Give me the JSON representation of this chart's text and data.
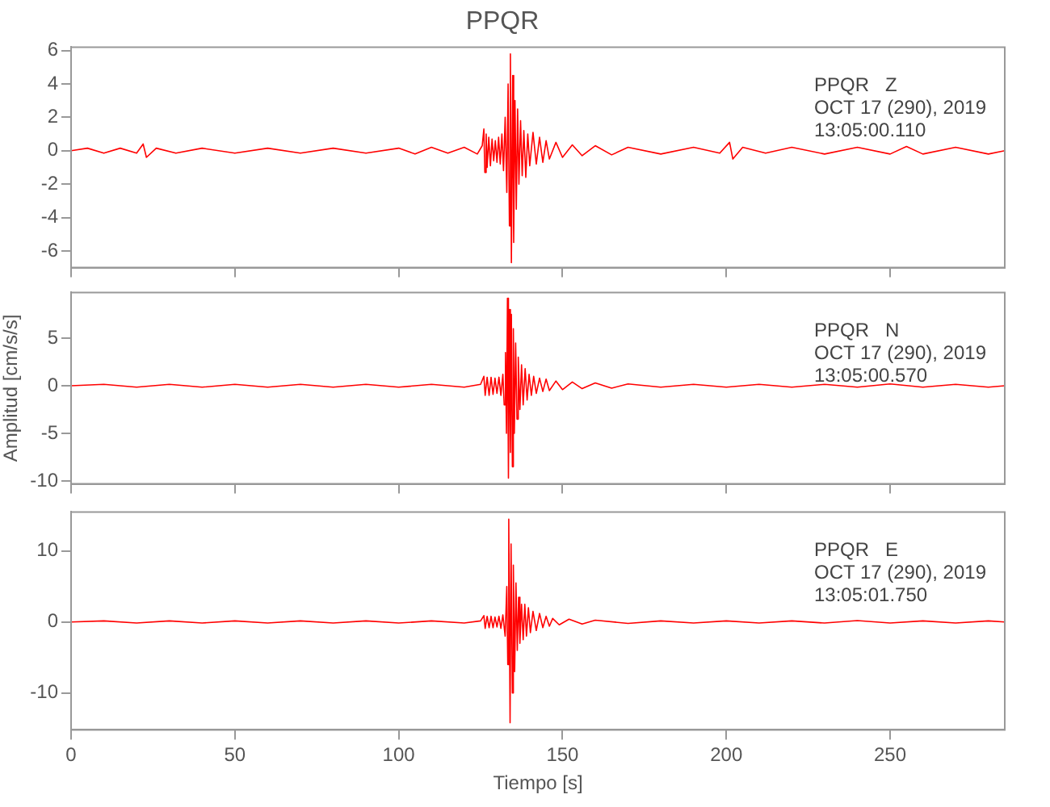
{
  "chart_data": [
    {
      "type": "line",
      "title": "PPQR",
      "annotations": [
        "PPQR   Z",
        "OCT 17 (290), 2019",
        "13:05:00.110"
      ],
      "xlim": [
        0,
        285
      ],
      "xticks": [
        0,
        50,
        100,
        150,
        200,
        250
      ],
      "ylim": [
        -7,
        6.2
      ],
      "yticks": [
        -6,
        -4,
        -2,
        0,
        2,
        4,
        6
      ],
      "tick_labels": "y",
      "grid": false,
      "legend": false,
      "series": [
        {
          "color": "#ff0000",
          "x": [
            0,
            5,
            10,
            15,
            20,
            22,
            23,
            26,
            32,
            40,
            50,
            60,
            70,
            80,
            90,
            100,
            105,
            110,
            115,
            120,
            124,
            125.5,
            126,
            126.3,
            126.7,
            127,
            127.5,
            128,
            128.5,
            129,
            129.5,
            130,
            130.5,
            131,
            131.5,
            132,
            132.5,
            133,
            133.4,
            133.8,
            134.1,
            134.4,
            134.8,
            135.1,
            135.5,
            135.9,
            136.3,
            136.7,
            137.2,
            137.7,
            138.2,
            138.8,
            139.4,
            140,
            141,
            142,
            143,
            144,
            145,
            146,
            148,
            150,
            153,
            156,
            160,
            165,
            170,
            180,
            190,
            198,
            201,
            202,
            205,
            212,
            220,
            230,
            240,
            250,
            255,
            260,
            270,
            280,
            285
          ],
          "values": [
            0,
            0.15,
            -0.15,
            0.15,
            -0.15,
            0.4,
            -0.4,
            0.15,
            -0.15,
            0.15,
            -0.15,
            0.15,
            -0.15,
            0.15,
            -0.15,
            0.15,
            -0.2,
            0.2,
            -0.15,
            0.2,
            -0.2,
            0.3,
            1.3,
            -1.3,
            1,
            -1,
            0.8,
            -0.9,
            0.7,
            -0.6,
            0.6,
            -0.7,
            0.8,
            -0.8,
            1,
            -1.2,
            2,
            -2.5,
            4,
            -4.5,
            5.8,
            -6.7,
            4.5,
            -5.5,
            3,
            -3.5,
            2.5,
            -2,
            1.8,
            -1.5,
            1.2,
            -1.6,
            1,
            -0.9,
            1.1,
            -0.8,
            0.8,
            -0.7,
            0.6,
            -0.5,
            0.5,
            -0.4,
            0.35,
            -0.3,
            0.3,
            -0.25,
            0.2,
            -0.2,
            0.2,
            -0.15,
            0.5,
            -0.5,
            0.2,
            -0.15,
            0.2,
            -0.2,
            0.2,
            -0.2,
            0.25,
            -0.2,
            0.2,
            -0.2,
            0
          ]
        }
      ]
    },
    {
      "type": "line",
      "ylabel": "Amplitud [cm/s/s]",
      "annotations": [
        "PPQR   N",
        "OCT 17 (290), 2019",
        "13:05:00.570"
      ],
      "xlim": [
        0,
        285
      ],
      "xticks": [
        0,
        50,
        100,
        150,
        200,
        250
      ],
      "ylim": [
        -10.3,
        9.8
      ],
      "yticks": [
        -10,
        -5,
        0,
        5
      ],
      "tick_labels": "y",
      "grid": false,
      "legend": false,
      "series": [
        {
          "color": "#ff0000",
          "x": [
            0,
            10,
            20,
            30,
            40,
            50,
            60,
            70,
            80,
            90,
            100,
            110,
            120,
            125,
            126,
            126.4,
            127,
            127.6,
            128.2,
            128.8,
            129.4,
            130,
            130.6,
            131.2,
            131.8,
            132.2,
            132.6,
            132.9,
            133.2,
            133.5,
            133.8,
            134.1,
            134.4,
            134.7,
            135,
            135.3,
            135.7,
            136.1,
            136.5,
            137,
            137.5,
            138,
            138.6,
            139.2,
            139.8,
            140.5,
            141.2,
            142,
            143,
            144,
            145,
            146,
            148,
            150,
            153,
            156,
            160,
            165,
            170,
            180,
            190,
            200,
            210,
            220,
            230,
            240,
            250,
            260,
            270,
            280,
            285
          ],
          "values": [
            0,
            0.15,
            -0.15,
            0.15,
            -0.15,
            0.15,
            -0.15,
            0.15,
            -0.15,
            0.15,
            -0.15,
            0.15,
            -0.15,
            0.15,
            1,
            -1,
            0.9,
            -1,
            0.9,
            -0.9,
            0.8,
            -0.8,
            0.9,
            -1,
            1.2,
            -2,
            3.5,
            -5,
            9.2,
            -9.7,
            8,
            -7,
            7.5,
            -8.5,
            6,
            -5,
            4.5,
            -3.5,
            3,
            -2.5,
            2.2,
            -2,
            1.8,
            -1.5,
            1.2,
            -1,
            1,
            -0.8,
            0.8,
            -0.6,
            0.7,
            -0.5,
            0.5,
            -0.4,
            0.4,
            -0.3,
            0.3,
            -0.25,
            0.2,
            -0.15,
            0.15,
            -0.15,
            0.15,
            -0.15,
            0.15,
            -0.15,
            0.2,
            -0.15,
            0.15,
            -0.15,
            0
          ]
        }
      ]
    },
    {
      "type": "line",
      "xlabel": "Tiempo [s]",
      "annotations": [
        "PPQR   E",
        "OCT 17 (290), 2019",
        "13:05:01.750"
      ],
      "xlim": [
        0,
        285
      ],
      "xticks": [
        0,
        50,
        100,
        150,
        200,
        250
      ],
      "ylim": [
        -15.2,
        15.5
      ],
      "yticks": [
        -10,
        0,
        10
      ],
      "grid": false,
      "legend": false,
      "series": [
        {
          "color": "#ff0000",
          "x": [
            0,
            10,
            20,
            30,
            40,
            50,
            60,
            70,
            80,
            90,
            100,
            110,
            120,
            125,
            126,
            126.4,
            127,
            127.6,
            128.2,
            128.8,
            129.4,
            130,
            130.6,
            131.2,
            131.8,
            132.5,
            133,
            133.3,
            133.6,
            134,
            134.3,
            134.7,
            135,
            135.4,
            135.8,
            136.2,
            136.6,
            137,
            137.5,
            138,
            138.5,
            139,
            139.6,
            140.2,
            141,
            142,
            143,
            144,
            145,
            146,
            147,
            149,
            152,
            156,
            160,
            170,
            180,
            190,
            200,
            210,
            220,
            230,
            240,
            250,
            260,
            270,
            280,
            285
          ],
          "values": [
            0,
            0.15,
            -0.15,
            0.15,
            -0.15,
            0.15,
            -0.15,
            0.15,
            -0.15,
            0.15,
            -0.15,
            0.15,
            -0.15,
            0.15,
            0.9,
            -0.9,
            0.8,
            -0.8,
            0.8,
            -0.8,
            0.7,
            -0.7,
            0.8,
            -0.9,
            1,
            -2,
            5,
            -6,
            14.5,
            -14.2,
            11,
            -10,
            8,
            -7,
            5.5,
            -4,
            3.5,
            -3,
            2.5,
            -2.5,
            2.5,
            -2,
            2,
            -1.5,
            1.5,
            -1.2,
            1.2,
            -0.8,
            0.8,
            -0.6,
            0.5,
            -0.4,
            0.4,
            -0.3,
            0.25,
            -0.2,
            0.15,
            -0.15,
            0.15,
            -0.15,
            0.15,
            -0.15,
            0.2,
            -0.15,
            0.15,
            -0.15,
            0.15,
            0
          ]
        }
      ]
    }
  ]
}
